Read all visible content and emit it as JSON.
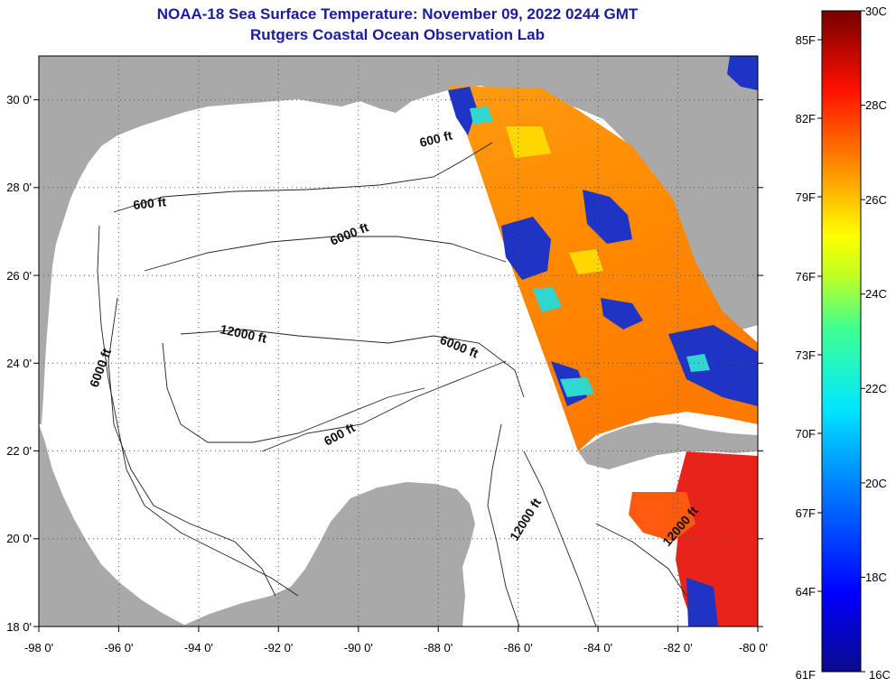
{
  "title": "NOAA-18 Sea Surface Temperature:  November 09, 2022 0244 GMT",
  "subtitle": "Rutgers Coastal Ocean Observation Lab",
  "map": {
    "lon_range": [
      -98,
      -80
    ],
    "lat_range": [
      18,
      31
    ],
    "x_ticks": [
      "-98 0'",
      "-96 0'",
      "-94 0'",
      "-92 0'",
      "-90 0'",
      "-88 0'",
      "-86 0'",
      "-84 0'",
      "-82 0'",
      "-80 0'"
    ],
    "y_ticks": [
      "18 0'",
      "20 0'",
      "22 0'",
      "24 0'",
      "26 0'",
      "28 0'",
      "30 0'"
    ],
    "contour_labels": [
      "600 ft",
      "600 ft",
      "6000 ft",
      "12000 ft",
      "6000 ft",
      "6000 ft",
      "600 ft",
      "12000 ft",
      "12000 ft"
    ],
    "land_color": "#a9a9a9",
    "nodata_color": "#ffffff"
  },
  "colorbar": {
    "celsius_labels": [
      "30C",
      "28C",
      "26C",
      "24C",
      "22C",
      "20C",
      "18C",
      "16C"
    ],
    "fahrenheit_labels": [
      "85F",
      "82F",
      "79F",
      "76F",
      "73F",
      "70F",
      "67F",
      "64F",
      "61F"
    ],
    "range_c": [
      16,
      30
    ]
  }
}
